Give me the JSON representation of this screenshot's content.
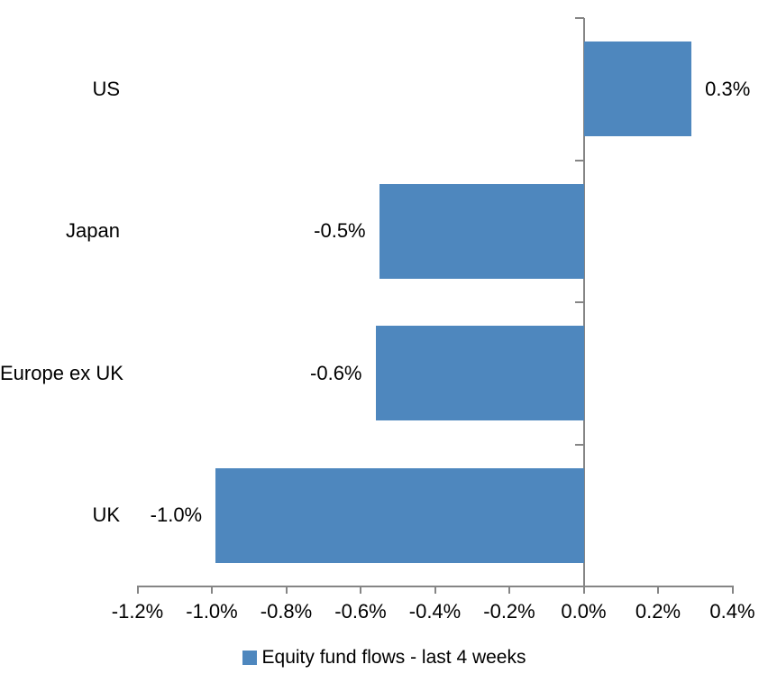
{
  "chart_data": {
    "type": "bar",
    "orientation": "horizontal",
    "title": "",
    "categories": [
      "US",
      "Japan",
      "Europe ex UK",
      "UK"
    ],
    "series": [
      {
        "name": "Equity fund flows - last 4 weeks",
        "values": [
          0.3,
          -0.5,
          -0.6,
          -1.0
        ],
        "data_labels": [
          "0.3%",
          "-0.5%",
          "-0.6%",
          "-1.0%"
        ],
        "bar_extents_pct": [
          0.29,
          -0.55,
          -0.56,
          -0.99
        ]
      }
    ],
    "x_axis": {
      "unit": "%",
      "min": -1.2,
      "max": 0.4,
      "ticks": [
        -1.2,
        -1.0,
        -0.8,
        -0.6,
        -0.4,
        -0.2,
        0.0,
        0.2,
        0.4
      ],
      "tick_labels": [
        "-1.2%",
        "-1.0%",
        "-0.8%",
        "-0.6%",
        "-0.4%",
        "-0.2%",
        "0.0%",
        "0.2%",
        "0.4%"
      ]
    },
    "grid": false,
    "legend": {
      "position": "bottom",
      "label": "Equity fund flows - last 4 weeks"
    },
    "colors": {
      "bar": "#4E87BE",
      "axis": "#858585",
      "text": "#000000",
      "background": "#FFFFFF"
    }
  }
}
